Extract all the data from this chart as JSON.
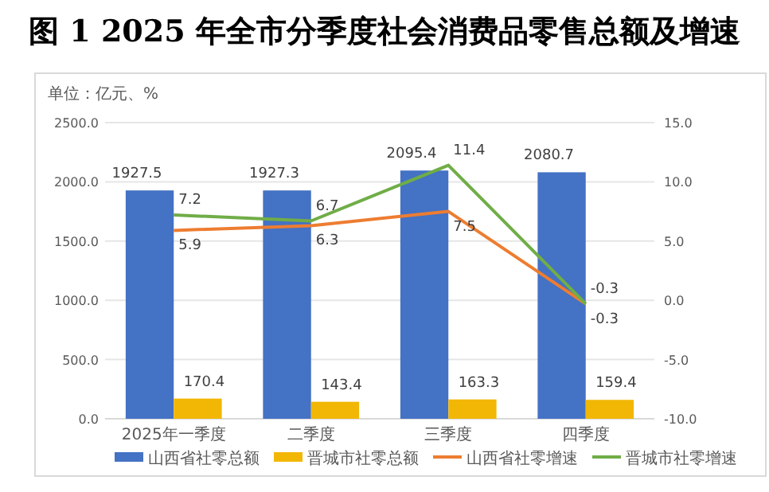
{
  "chart_data": {
    "type": "bar",
    "title": "图 1  2025 年全市分季度社会消费品零售总额及增速",
    "annotations": [
      "单位：亿元、%"
    ],
    "categories": [
      "2025年一季度",
      "二季度",
      "三季度",
      "四季度"
    ],
    "series": [
      {
        "name": "山西省社零总额",
        "color": "#4472c4",
        "values": [
          1927.5,
          1927.3,
          2095.4,
          2080.7
        ]
      },
      {
        "name": "晋城市社零总额",
        "color": "#f2b705",
        "values": [
          170.4,
          143.4,
          163.3,
          159.4
        ]
      },
      {
        "name": "山西省社零增速",
        "type": "line",
        "axis": "y2",
        "color": "#ed7d31",
        "values": [
          5.9,
          6.3,
          7.5,
          -0.3
        ]
      },
      {
        "name": "晋城市社零增速",
        "type": "line",
        "axis": "y2",
        "color": "#70ad47",
        "values": [
          7.2,
          6.7,
          11.4,
          -0.3
        ]
      }
    ],
    "ylim": [
      0,
      2500
    ],
    "yticks": [
      {
        "value": 0,
        "label": "0.0"
      },
      {
        "value": 500,
        "label": "500.0"
      },
      {
        "value": 1000,
        "label": "1000.0"
      },
      {
        "value": 1500,
        "label": "1500.0"
      },
      {
        "value": 2000,
        "label": "2000.0"
      },
      {
        "value": 2500,
        "label": "2500.0"
      }
    ],
    "y2lim": [
      -10,
      15
    ],
    "y2ticks": [
      {
        "value": -10,
        "label": "-10.0"
      },
      {
        "value": -5,
        "label": "-5.0"
      },
      {
        "value": 0,
        "label": "0.0"
      },
      {
        "value": 5,
        "label": "5.0"
      },
      {
        "value": 10,
        "label": "10.0"
      },
      {
        "value": 15,
        "label": "15.0"
      }
    ],
    "grid": "y",
    "legend": "bottom",
    "data_labels": true,
    "line_style": "solid",
    "marker": "none"
  }
}
